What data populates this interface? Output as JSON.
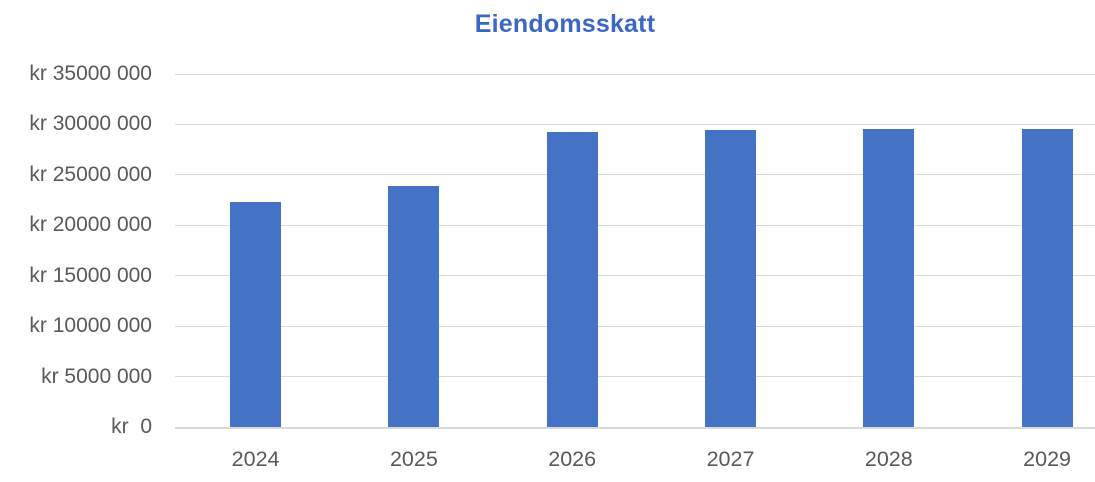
{
  "title": "Eiendomsskatt",
  "colors": {
    "bar": "#4472C4",
    "title": "#3B66C4",
    "grid": "#D9D9D9",
    "axis": "#D9D9D9",
    "text": "#595959",
    "background": "#FFFFFF"
  },
  "chart_data": {
    "type": "bar",
    "title": "Eiendomsskatt",
    "categories": [
      "2024",
      "2025",
      "2026",
      "2027",
      "2028",
      "2029"
    ],
    "values": [
      22300000,
      23900000,
      29200000,
      29400000,
      29500000,
      29500000
    ],
    "xlabel": "",
    "ylabel": "",
    "ylim": [
      0,
      35000000
    ],
    "ytick_step": 5000000,
    "ytick_labels": [
      "kr  0",
      "kr 5000 000",
      "kr 10000 000",
      "kr 15000 000",
      "kr 20000 000",
      "kr 25000 000",
      "kr 30000 000",
      "kr 35000 000"
    ],
    "currency_prefix": "kr",
    "grid": true,
    "legend": false,
    "legend_position": "none"
  }
}
